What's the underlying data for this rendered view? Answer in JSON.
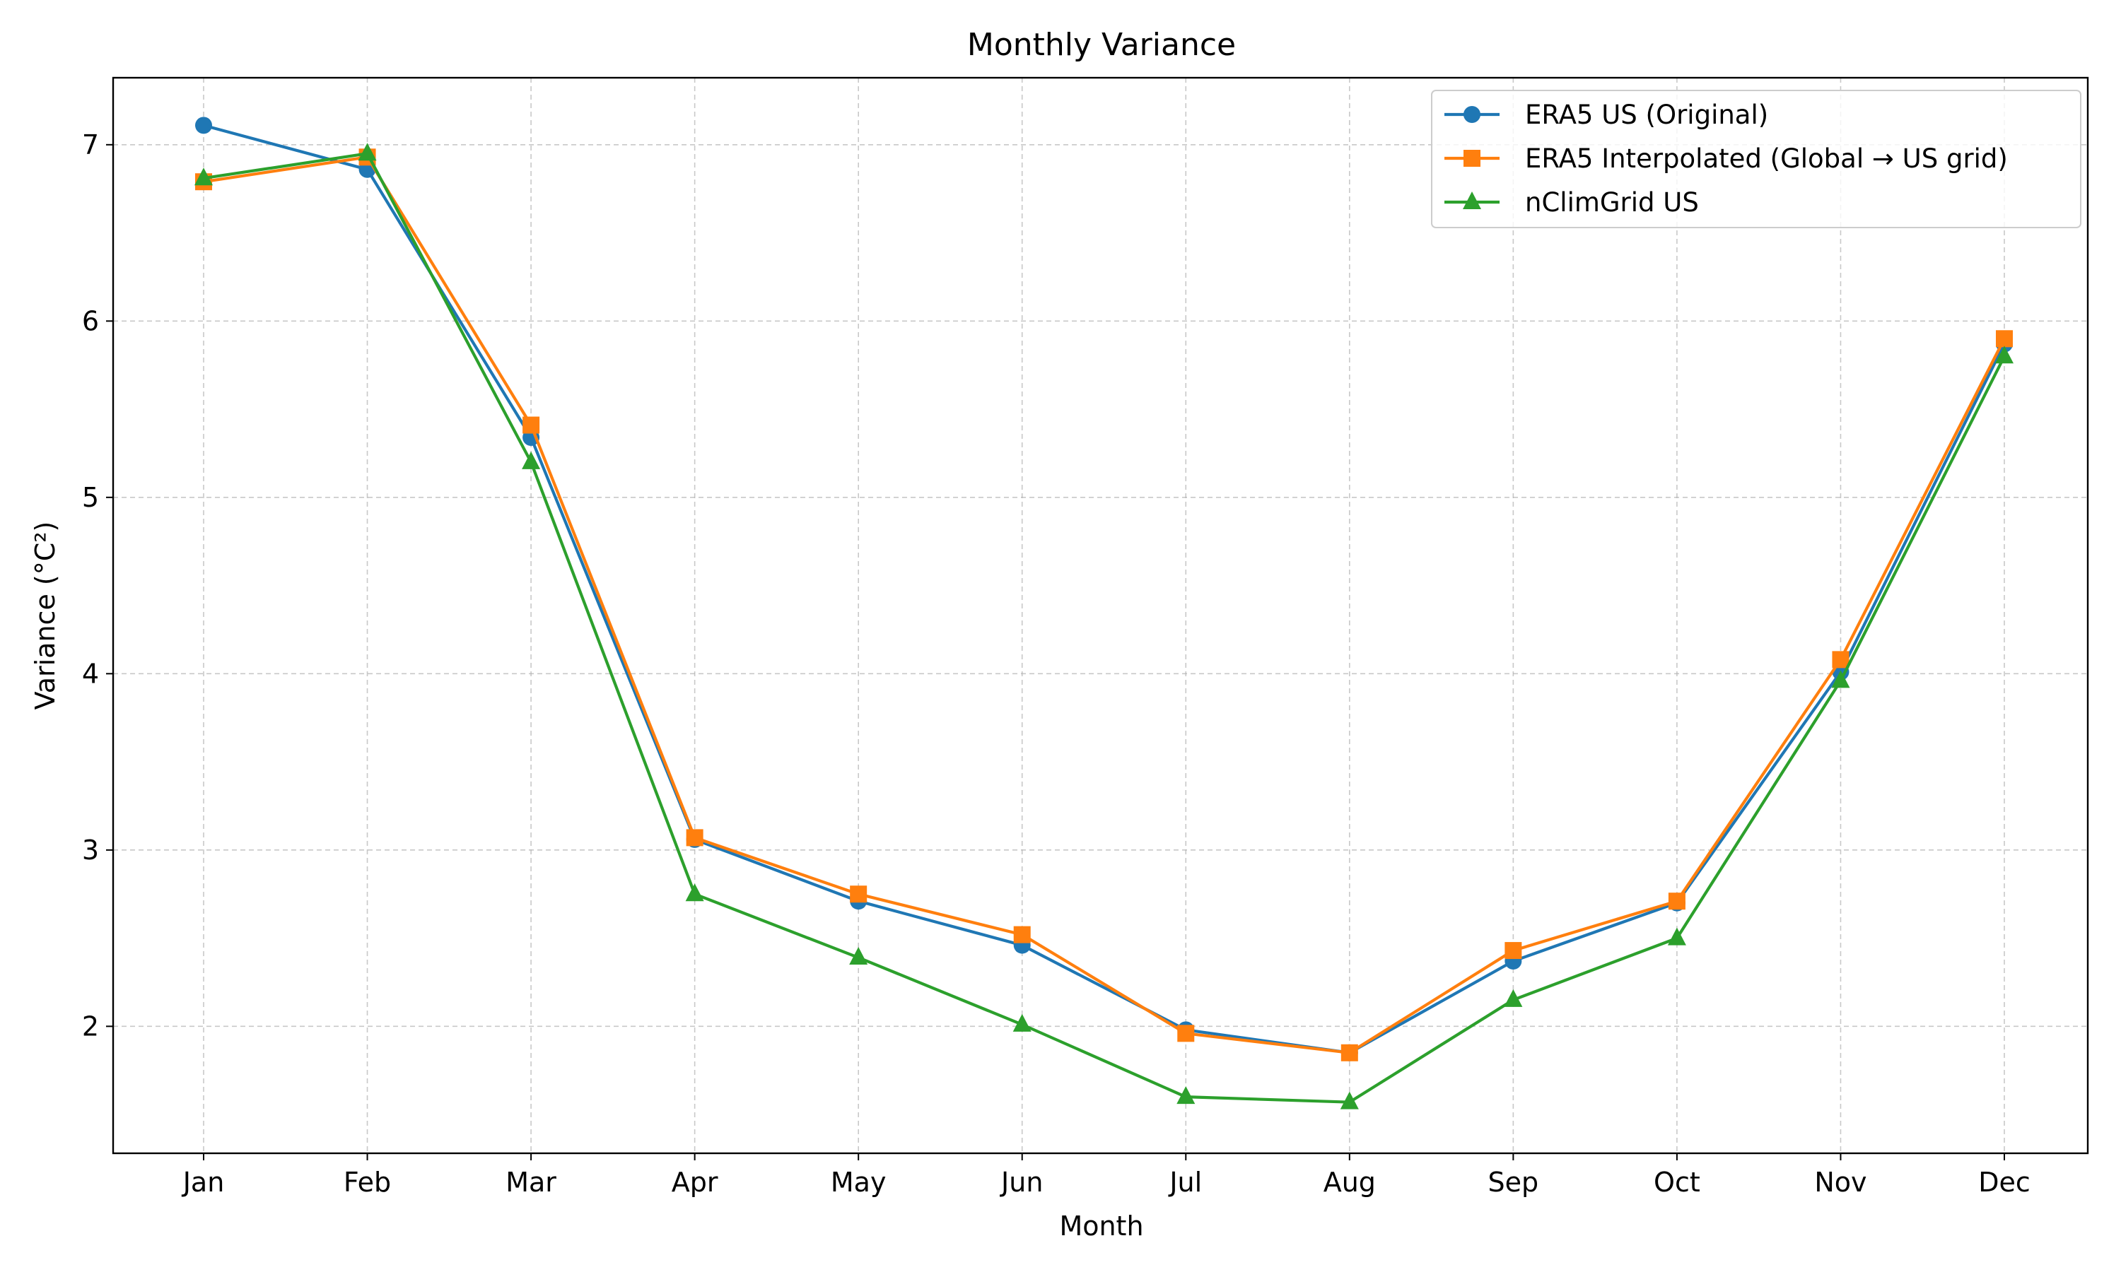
{
  "chart_data": {
    "type": "line",
    "title": "Monthly Variance",
    "xlabel": "Month",
    "ylabel": "Variance (°C²)",
    "categories": [
      "Jan",
      "Feb",
      "Mar",
      "Apr",
      "May",
      "Jun",
      "Jul",
      "Aug",
      "Sep",
      "Oct",
      "Nov",
      "Dec"
    ],
    "ylim": [
      1.28,
      7.38
    ],
    "yticks": [
      2,
      3,
      4,
      5,
      6,
      7
    ],
    "grid": true,
    "legend_position": "top-right",
    "series": [
      {
        "name": "ERA5 US (Original)",
        "color": "#1f77b4",
        "marker": "circle",
        "values": [
          7.11,
          6.86,
          5.34,
          3.06,
          2.71,
          2.46,
          1.98,
          1.85,
          2.37,
          2.7,
          4.01,
          5.87
        ]
      },
      {
        "name": "ERA5 Interpolated (Global → US grid)",
        "color": "#ff7f0e",
        "marker": "square",
        "values": [
          6.79,
          6.93,
          5.41,
          3.07,
          2.75,
          2.52,
          1.96,
          1.85,
          2.43,
          2.71,
          4.08,
          5.9
        ]
      },
      {
        "name": "nClimGrid US",
        "color": "#2ca02c",
        "marker": "triangle",
        "values": [
          6.81,
          6.95,
          5.2,
          2.75,
          2.39,
          2.01,
          1.6,
          1.57,
          2.15,
          2.5,
          3.96,
          5.8
        ]
      }
    ]
  }
}
